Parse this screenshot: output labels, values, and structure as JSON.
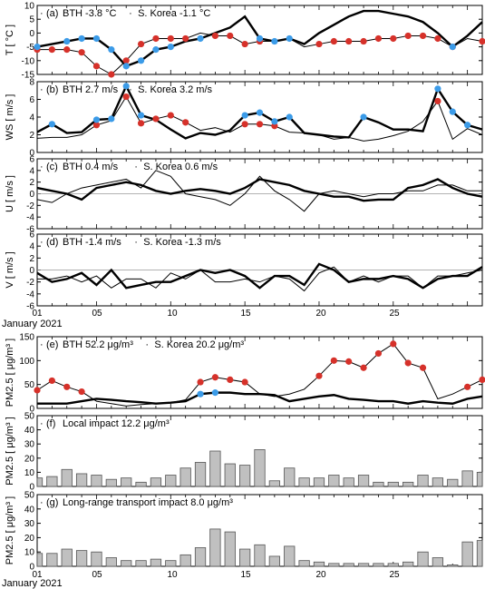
{
  "x_tick_labels": [
    "01",
    "05",
    "10",
    "15",
    "20",
    "25"
  ],
  "x_month_label": "January 2021",
  "colors": {
    "red_marker": "#d6312a",
    "blue_marker": "#3b9be8",
    "bar_fill": "#c0c0c0",
    "line": "#000000"
  },
  "chart_data": [
    {
      "type": "line",
      "panel_label": "(a)",
      "annotation": {
        "bth": "BTH -3.8 °C",
        "sep": "·",
        "korea": "S. Korea -1.1 °C"
      },
      "ylabel": "T [ °C ]",
      "ylim": [
        -15,
        10
      ],
      "yticks": [
        10,
        5,
        0,
        -5,
        -10,
        -15
      ],
      "zero_line": false,
      "x": [
        1,
        2,
        3,
        4,
        5,
        6,
        7,
        8,
        9,
        10,
        11,
        12,
        13,
        14,
        15,
        16,
        17,
        18,
        19,
        20,
        21,
        22,
        23,
        24,
        25,
        26,
        27,
        28,
        29,
        30,
        31
      ],
      "series": [
        {
          "role": "thick",
          "values": [
            -5,
            -4,
            -3,
            -2,
            -2,
            -6,
            -12,
            -10,
            -6,
            -5,
            -3,
            -2,
            0,
            2,
            6,
            -2,
            -3,
            -2,
            -4,
            0,
            3,
            6,
            8,
            8,
            7,
            6,
            4,
            0,
            -5,
            -1,
            4
          ]
        },
        {
          "role": "thin",
          "values": [
            -6,
            -6,
            -6,
            -7,
            -12,
            -15,
            -10,
            -4,
            -2,
            -2,
            -2,
            0,
            -1,
            -1,
            -4,
            -3,
            -3,
            -2,
            -5,
            -4,
            -3,
            -3,
            -3,
            -2,
            -2,
            -1,
            -1,
            -2,
            -5,
            -2,
            -3
          ]
        }
      ],
      "markers": [
        {
          "color": "red",
          "series": "thin",
          "x": [
            1,
            2,
            3,
            4,
            5,
            6,
            7,
            8,
            9,
            10,
            11,
            13,
            14,
            15,
            16,
            20,
            21,
            22,
            23,
            24,
            25,
            26,
            27,
            28,
            29,
            31
          ]
        },
        {
          "color": "blue",
          "series": "thick",
          "x": [
            1,
            3,
            4,
            5,
            6,
            7,
            8,
            9,
            10,
            12,
            16,
            17,
            18,
            29
          ]
        }
      ]
    },
    {
      "type": "line",
      "panel_label": "(b)",
      "annotation": {
        "bth": "BTH 2.7 m/s",
        "sep": "·",
        "korea": "S. Korea 3.2 m/s"
      },
      "ylabel": "WS [ m/s ]",
      "ylim": [
        0,
        8
      ],
      "yticks": [
        8,
        6,
        4,
        2,
        0
      ],
      "zero_line": false,
      "x": [
        1,
        2,
        3,
        4,
        5,
        6,
        7,
        8,
        9,
        10,
        11,
        12,
        13,
        14,
        15,
        16,
        17,
        18,
        19,
        20,
        21,
        22,
        23,
        24,
        25,
        26,
        27,
        28,
        29,
        30,
        31
      ],
      "series": [
        {
          "role": "thick",
          "values": [
            2.3,
            3.2,
            2.2,
            2.3,
            3.7,
            3.8,
            7.5,
            4.2,
            3.7,
            2.6,
            1.6,
            2.2,
            2.0,
            2.5,
            4.2,
            4.5,
            3.5,
            4.0,
            2.2,
            2.0,
            1.8,
            1.7,
            4.0,
            3.4,
            2.6,
            2.6,
            2.4,
            7.2,
            4.6,
            3.1,
            2.6
          ]
        },
        {
          "role": "thin",
          "values": [
            1.6,
            1.7,
            1.7,
            2.0,
            3.1,
            3.6,
            6.3,
            3.3,
            3.8,
            4.2,
            3.4,
            2.5,
            2.8,
            2.3,
            3.2,
            3.2,
            3.0,
            2.3,
            2.2,
            2.0,
            1.5,
            1.7,
            1.3,
            1.5,
            1.9,
            2.4,
            3.5,
            5.8,
            1.5,
            2.7,
            2.0
          ]
        }
      ],
      "markers": [
        {
          "color": "red",
          "series": "thin",
          "x": [
            5,
            7,
            8,
            9,
            10,
            11,
            15,
            16,
            17,
            28
          ]
        },
        {
          "color": "blue",
          "series": "thick",
          "x": [
            2,
            5,
            6,
            7,
            8,
            15,
            16,
            17,
            18,
            23,
            28,
            29,
            30
          ]
        }
      ]
    },
    {
      "type": "line",
      "panel_label": "(c)",
      "annotation": {
        "bth": "BTH  0.4 m/s",
        "sep": "·",
        "korea": "S. Korea  0.6 m/s"
      },
      "ylabel": "U [ m/s ]",
      "ylim": [
        -6,
        6
      ],
      "yticks": [
        6,
        4,
        2,
        0,
        -2,
        -4,
        -6
      ],
      "zero_line": true,
      "x": [
        1,
        2,
        3,
        4,
        5,
        6,
        7,
        8,
        9,
        10,
        11,
        12,
        13,
        14,
        15,
        16,
        17,
        18,
        19,
        20,
        21,
        22,
        23,
        24,
        25,
        26,
        27,
        28,
        29,
        30,
        31
      ],
      "series": [
        {
          "role": "thick",
          "values": [
            1,
            0.5,
            0,
            -1,
            1,
            1.5,
            2,
            1.5,
            0.5,
            0,
            0.5,
            0.8,
            0.5,
            0,
            1,
            2.5,
            2,
            1.5,
            0.5,
            0,
            -0.5,
            -0.5,
            -1.2,
            -1,
            -1,
            1,
            1.5,
            2.5,
            1,
            0,
            -0.5
          ]
        },
        {
          "role": "thin",
          "values": [
            -1,
            -1.5,
            0,
            1,
            1.5,
            2,
            2.5,
            1,
            4,
            3,
            0,
            -0.5,
            -1,
            -2,
            0,
            3,
            0.5,
            -1,
            -3,
            0,
            0.5,
            0,
            -0.5,
            0,
            0,
            0.5,
            0.5,
            1.5,
            1.5,
            0.5,
            0.5
          ]
        }
      ],
      "markers": []
    },
    {
      "type": "line",
      "panel_label": "(d)",
      "annotation": {
        "bth": "BTH -1.4 m/s",
        "sep": "·",
        "korea": "S. Korea -1.3 m/s"
      },
      "ylabel": "V [ m/s ]",
      "ylim": [
        -6,
        6
      ],
      "yticks": [
        6,
        4,
        2,
        0,
        -2,
        -4,
        -6
      ],
      "zero_line": true,
      "x": [
        1,
        2,
        3,
        4,
        5,
        6,
        7,
        8,
        9,
        10,
        11,
        12,
        13,
        14,
        15,
        16,
        17,
        18,
        19,
        20,
        21,
        22,
        23,
        24,
        25,
        26,
        27,
        28,
        29,
        30,
        31
      ],
      "series": [
        {
          "role": "thick",
          "values": [
            -0.5,
            -2,
            -1.5,
            -0.5,
            -2.5,
            0,
            -3,
            -2.5,
            -2,
            -2,
            -1,
            0,
            -0.5,
            0,
            -1,
            -3,
            -1,
            -1,
            -2.5,
            1,
            0,
            -2,
            -1.5,
            -1.5,
            -1,
            -1.5,
            -3,
            -1.5,
            -1,
            -1,
            0.5
          ]
        },
        {
          "role": "thin",
          "values": [
            -1.5,
            -1.5,
            -1,
            -2,
            -1,
            -3,
            -1.5,
            -1.5,
            -3,
            -0.5,
            -1.5,
            0,
            -2,
            -2,
            -1.5,
            -2,
            -1,
            -1.5,
            -3.5,
            -0.5,
            0.5,
            -2,
            -1,
            -2,
            -1,
            -1,
            -3,
            -1,
            -1,
            -0.5,
            0
          ]
        }
      ],
      "markers": []
    },
    {
      "type": "line",
      "panel_label": "(e)",
      "annotation": {
        "bth": "BTH 52.2 μg/m³",
        "sep": "·",
        "korea": "S. Korea 20.2 μg/m³"
      },
      "ylabel": "PM2.5 [ μg/m³ ]",
      "ylim": [
        0,
        150
      ],
      "yticks": [
        150,
        100,
        50,
        0
      ],
      "zero_line": false,
      "x": [
        1,
        2,
        3,
        4,
        5,
        6,
        7,
        8,
        9,
        10,
        11,
        12,
        13,
        14,
        15,
        16,
        17,
        18,
        19,
        20,
        21,
        22,
        23,
        24,
        25,
        26,
        27,
        28,
        29,
        30,
        31
      ],
      "series": [
        {
          "role": "thick",
          "values": [
            10,
            10,
            10,
            15,
            20,
            18,
            15,
            13,
            10,
            12,
            15,
            30,
            33,
            33,
            30,
            30,
            28,
            15,
            20,
            25,
            28,
            20,
            18,
            15,
            15,
            10,
            15,
            12,
            10,
            20,
            25
          ]
        },
        {
          "role": "thin",
          "values": [
            38,
            58,
            45,
            35,
            15,
            10,
            5,
            8,
            10,
            12,
            18,
            55,
            65,
            60,
            55,
            30,
            25,
            30,
            40,
            68,
            100,
            98,
            85,
            115,
            135,
            95,
            85,
            20,
            30,
            45,
            60
          ]
        }
      ],
      "markers": [
        {
          "color": "red",
          "series": "thin",
          "x": [
            1,
            2,
            3,
            4,
            12,
            13,
            14,
            15,
            20,
            21,
            22,
            23,
            24,
            25,
            26,
            27,
            30,
            31
          ]
        },
        {
          "color": "blue",
          "series": "thick",
          "x": [
            12,
            13
          ]
        }
      ]
    },
    {
      "type": "bar",
      "panel_label": "(f)",
      "annotation": {
        "text": "Local impact 12.2 μg/m³"
      },
      "ylabel": "PM2.5 [ μg/m³ ]",
      "ylim": [
        0,
        50
      ],
      "yticks": [
        50,
        40,
        30,
        20,
        10,
        0
      ],
      "x": [
        1,
        2,
        3,
        4,
        5,
        6,
        7,
        8,
        9,
        10,
        11,
        12,
        13,
        14,
        15,
        16,
        17,
        18,
        19,
        20,
        21,
        22,
        23,
        24,
        25,
        26,
        27,
        28,
        29,
        30,
        31
      ],
      "values": [
        6,
        7,
        12,
        9,
        8,
        5,
        6,
        3,
        6,
        8,
        13,
        17,
        25,
        16,
        15,
        26,
        4,
        13,
        6,
        6,
        8,
        6,
        8,
        3,
        3,
        3,
        8,
        6,
        5,
        11,
        10
      ]
    },
    {
      "type": "bar",
      "panel_label": "(g)",
      "annotation": {
        "text": "Long-range transport impact 8.0 μg/m³"
      },
      "ylabel": "PM2.5 [ μg/m³ ]",
      "ylim": [
        0,
        50
      ],
      "yticks": [
        50,
        40,
        30,
        20,
        10,
        0
      ],
      "x": [
        1,
        2,
        3,
        4,
        5,
        6,
        7,
        8,
        9,
        10,
        11,
        12,
        13,
        14,
        15,
        16,
        17,
        18,
        19,
        20,
        21,
        22,
        23,
        24,
        25,
        26,
        27,
        28,
        29,
        30,
        31
      ],
      "values": [
        9,
        9,
        12,
        11,
        10,
        6,
        4,
        4,
        5,
        4,
        8,
        13,
        26,
        24,
        12,
        15,
        7,
        14,
        4,
        3,
        2,
        2,
        2,
        2,
        2,
        3,
        10,
        6,
        1,
        17,
        18
      ]
    }
  ]
}
